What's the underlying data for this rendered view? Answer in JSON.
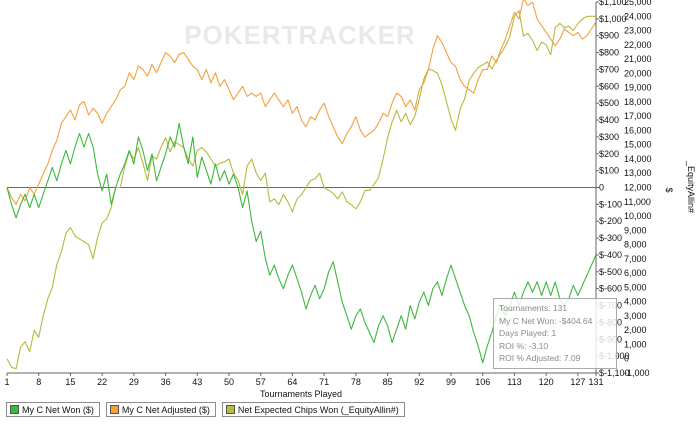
{
  "chart_data": {
    "type": "line",
    "watermark": "POKERTRACKER",
    "xlabel": "Tournaments Played",
    "ylabel_left": "",
    "ylabel_right": "$",
    "ylabel_right2": "_EquityAllin#",
    "x_ticks": [
      1,
      8,
      15,
      22,
      29,
      36,
      43,
      50,
      57,
      64,
      71,
      78,
      85,
      92,
      99,
      106,
      113,
      120,
      127,
      131
    ],
    "y_dollar_ticks": [
      "$1,100",
      "$1,000",
      "$900",
      "$800",
      "$700",
      "$600",
      "$500",
      "$400",
      "$300",
      "$200",
      "$100",
      "0",
      "$-100",
      "$-200",
      "$-300",
      "$-400",
      "$-500",
      "$-600",
      "$-700",
      "$-800",
      "$-900",
      "$-1,000",
      "$-1,100"
    ],
    "y_chips_ticks": [
      "25,000",
      "24,000",
      "23,000",
      "22,000",
      "21,000",
      "20,000",
      "19,000",
      "18,000",
      "17,000",
      "16,000",
      "15,000",
      "14,000",
      "13,000",
      "12,000",
      "11,000",
      "10,000",
      "9,000",
      "8,000",
      "7,000",
      "6,000",
      "5,000",
      "4,000",
      "3,000",
      "2,000",
      "1,000",
      "0",
      "-1,000"
    ],
    "y_dollar_range": [
      -1100,
      1100
    ],
    "y_chips_range": [
      -1000,
      25000
    ],
    "grid": false,
    "legend_position": "bottom-left",
    "colors": {
      "net_won": "#3cb93c",
      "net_adjusted": "#f4a03c",
      "equity": "#b5bb3a",
      "zero_line": "#333333"
    },
    "series": [
      {
        "name": "My C Net Won ($)",
        "axis": "dollars",
        "x": [
          1,
          2,
          3,
          4,
          5,
          6,
          7,
          8,
          9,
          10,
          11,
          12,
          13,
          14,
          15,
          16,
          17,
          18,
          19,
          20,
          21,
          22,
          23,
          24,
          25,
          26,
          27,
          28,
          29,
          30,
          31,
          32,
          33,
          34,
          35,
          36,
          37,
          38,
          39,
          40,
          41,
          42,
          43,
          44,
          45,
          46,
          47,
          48,
          49,
          50,
          51,
          52,
          53,
          54,
          55,
          56,
          57,
          58,
          59,
          60,
          61,
          62,
          63,
          64,
          65,
          66,
          67,
          68,
          69,
          70,
          71,
          72,
          73,
          74,
          75,
          76,
          77,
          78,
          79,
          80,
          81,
          82,
          83,
          84,
          85,
          86,
          87,
          88,
          89,
          90,
          91,
          92,
          93,
          94,
          95,
          96,
          97,
          98,
          99,
          100,
          101,
          102,
          103,
          104,
          105,
          106,
          107,
          108,
          109,
          110,
          111,
          112,
          113,
          114,
          115,
          116,
          117,
          118,
          119,
          120,
          121,
          122,
          123,
          124,
          125,
          126,
          127,
          128,
          129,
          130,
          131
        ],
        "y": [
          0,
          -100,
          -180,
          -100,
          -40,
          -120,
          -40,
          -120,
          -40,
          40,
          120,
          40,
          140,
          220,
          140,
          240,
          320,
          240,
          320,
          240,
          80,
          -20,
          80,
          -100,
          0,
          80,
          140,
          220,
          140,
          300,
          220,
          100,
          200,
          40,
          120,
          200,
          300,
          240,
          380,
          240,
          140,
          300,
          60,
          180,
          100,
          20,
          140,
          40,
          100,
          20,
          80,
          0,
          -120,
          -20,
          -200,
          -320,
          -260,
          -420,
          -520,
          -460,
          -540,
          -600,
          -520,
          -460,
          -540,
          -620,
          -720,
          -640,
          -580,
          -660,
          -600,
          -500,
          -440,
          -560,
          -680,
          -760,
          -840,
          -760,
          -720,
          -800,
          -860,
          -920,
          -820,
          -760,
          -820,
          -920,
          -840,
          -760,
          -840,
          -700,
          -780,
          -680,
          -620,
          -700,
          -600,
          -560,
          -640,
          -540,
          -460,
          -540,
          -620,
          -700,
          -760,
          -860,
          -940,
          -1040,
          -940,
          -860,
          -760,
          -700,
          -760,
          -700,
          -620,
          -700,
          -620,
          -560,
          -620,
          -560,
          -640,
          -560,
          -640,
          -560,
          -660,
          -700,
          -660,
          -580,
          -640,
          -580,
          -520,
          -460,
          -400
        ]
      },
      {
        "name": "My C Net Adjusted ($)",
        "axis": "dollars",
        "x": [
          1,
          2,
          3,
          4,
          5,
          6,
          7,
          8,
          9,
          10,
          11,
          12,
          13,
          14,
          15,
          16,
          17,
          18,
          19,
          20,
          21,
          22,
          23,
          24,
          25,
          26,
          27,
          28,
          29,
          30,
          31,
          32,
          33,
          34,
          35,
          36,
          37,
          38,
          39,
          40,
          41,
          42,
          43,
          44,
          45,
          46,
          47,
          48,
          49,
          50,
          51,
          52,
          53,
          54,
          55,
          56,
          57,
          58,
          59,
          60,
          61,
          62,
          63,
          64,
          65,
          66,
          67,
          68,
          69,
          70,
          71,
          72,
          73,
          74,
          75,
          76,
          77,
          78,
          79,
          80,
          81,
          82,
          83,
          84,
          85,
          86,
          87,
          88,
          89,
          90,
          91,
          92,
          93,
          94,
          95,
          96,
          97,
          98,
          99,
          100,
          101,
          102,
          103,
          104,
          105,
          106,
          107,
          108,
          109,
          110,
          111,
          112,
          113,
          114,
          115,
          116,
          117,
          118,
          119,
          120,
          121,
          122,
          123,
          124,
          125,
          126,
          127,
          128,
          129,
          130,
          131
        ],
        "y": [
          0,
          -60,
          -100,
          -40,
          -80,
          0,
          -40,
          20,
          80,
          140,
          220,
          280,
          380,
          420,
          460,
          400,
          490,
          510,
          430,
          470,
          440,
          380,
          440,
          480,
          520,
          580,
          600,
          680,
          640,
          720,
          700,
          660,
          730,
          680,
          740,
          800,
          780,
          740,
          790,
          800,
          760,
          720,
          700,
          640,
          700,
          620,
          680,
          600,
          640,
          580,
          520,
          560,
          600,
          540,
          560,
          540,
          560,
          480,
          520,
          560,
          520,
          480,
          520,
          440,
          480,
          400,
          360,
          420,
          400,
          460,
          500,
          420,
          360,
          300,
          260,
          320,
          360,
          420,
          340,
          300,
          320,
          340,
          380,
          440,
          420,
          500,
          560,
          540,
          480,
          520,
          460,
          580,
          620,
          700,
          820,
          900,
          860,
          800,
          740,
          720,
          640,
          600,
          580,
          560,
          640,
          700,
          700,
          780,
          740,
          820,
          880,
          960,
          1040,
          1000,
          1120,
          1080,
          1100,
          1000,
          960,
          920,
          880,
          840,
          880,
          940,
          920,
          900,
          920,
          880,
          900,
          940,
          980
        ]
      },
      {
        "name": "Net Expected Chips Won (_EquityAllin#)",
        "axis": "chips",
        "x": [
          1,
          2,
          3,
          4,
          5,
          6,
          7,
          8,
          9,
          10,
          11,
          12,
          13,
          14,
          15,
          16,
          17,
          18,
          19,
          20,
          21,
          22,
          23,
          24,
          25,
          26,
          27,
          28,
          29,
          30,
          31,
          32,
          33,
          34,
          35,
          36,
          37,
          38,
          39,
          40,
          41,
          42,
          43,
          44,
          45,
          46,
          47,
          48,
          49,
          50,
          51,
          52,
          53,
          54,
          55,
          56,
          57,
          58,
          59,
          60,
          61,
          62,
          63,
          64,
          65,
          66,
          67,
          68,
          69,
          70,
          71,
          72,
          73,
          74,
          75,
          76,
          77,
          78,
          79,
          80,
          81,
          82,
          83,
          84,
          85,
          86,
          87,
          88,
          89,
          90,
          91,
          92,
          93,
          94,
          95,
          96,
          97,
          98,
          99,
          100,
          101,
          102,
          103,
          104,
          105,
          106,
          107,
          108,
          109,
          110,
          111,
          112,
          113,
          114,
          115,
          116,
          117,
          118,
          119,
          120,
          121,
          122,
          123,
          124,
          125,
          126,
          127,
          128,
          129,
          130,
          131
        ],
        "y": [
          0,
          -600,
          -700,
          800,
          1200,
          500,
          2000,
          1500,
          3000,
          4200,
          5000,
          6600,
          7500,
          8800,
          9200,
          8600,
          8400,
          8200,
          8000,
          7000,
          8500,
          9500,
          9800,
          10600,
          12000,
          12000,
          13500,
          14500,
          14000,
          14800,
          13700,
          12500,
          14200,
          14000,
          14800,
          15500,
          14500,
          15200,
          15000,
          14800,
          14000,
          13500,
          14600,
          14800,
          14500,
          14000,
          13500,
          13700,
          13800,
          14000,
          13000,
          12500,
          11500,
          13500,
          14000,
          13000,
          12500,
          13000,
          11000,
          11200,
          10800,
          11500,
          11000,
          10300,
          11200,
          11500,
          12000,
          12500,
          12600,
          13000,
          12000,
          11800,
          11600,
          11200,
          11700,
          11000,
          10800,
          10500,
          11000,
          11800,
          11800,
          12200,
          12700,
          14000,
          15500,
          16600,
          17400,
          16600,
          17200,
          16400,
          17000,
          18200,
          19600,
          20300,
          20200,
          20000,
          19200,
          18000,
          16800,
          16000,
          17500,
          18200,
          19500,
          20000,
          20400,
          20600,
          20800,
          20300,
          20900,
          21400,
          21900,
          22600,
          24000,
          24400,
          22600,
          22800,
          22300,
          21600,
          22200,
          22000,
          21300,
          23200,
          23500,
          23200,
          23300,
          23000,
          23500,
          23800,
          24000,
          24000,
          24000
        ]
      }
    ],
    "legend": [
      {
        "label": "My C Net Won ($)",
        "color": "#3cb93c"
      },
      {
        "label": "My C Net Adjusted ($)",
        "color": "#f4a03c"
      },
      {
        "label": "Net Expected Chips Won (_EquityAllin#)",
        "color": "#b5bb3a"
      }
    ],
    "tooltip": {
      "tournaments": "Tournaments: 131",
      "net_won": "My C Net Won: -$404.64",
      "days_played": "Days Played: 1",
      "roi": "ROI %: -3.10",
      "roi_adjusted": "ROI % Adjusted: 7.09"
    }
  }
}
